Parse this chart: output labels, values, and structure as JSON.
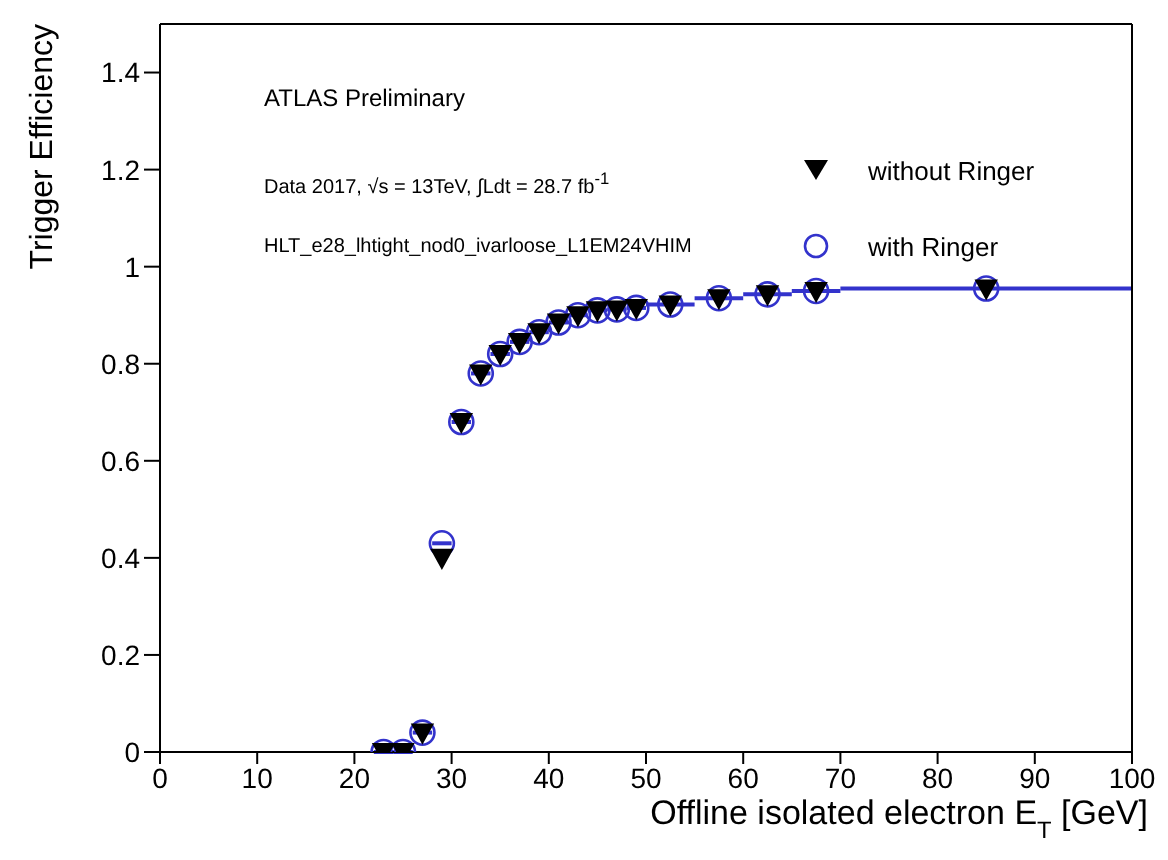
{
  "chart_data": {
    "type": "scatter",
    "xlabel": "Offline isolated electron E$_{T}$ [GeV]",
    "ylabel": "Trigger Efficiency",
    "annotations": [
      "ATLAS Preliminary",
      "Data 2017, √s = 13TeV, ∫Ldt = 28.7 fb$^{-1}$",
      "HLT_e28_lhtight_nod0_ivarloose_L1EM24VHIM"
    ],
    "x": [
      23,
      25,
      27,
      29,
      31,
      33,
      35,
      37,
      39,
      41,
      43,
      45,
      47,
      49,
      52.5,
      57.5,
      62.5,
      67.5,
      85
    ],
    "series": [
      {
        "name": "without Ringer",
        "color": "#000000",
        "marker": "triangle",
        "values": [
          0,
          0,
          0.04,
          0.4,
          0.68,
          0.78,
          0.82,
          0.845,
          0.865,
          0.885,
          0.9,
          0.91,
          0.912,
          0.915,
          0.922,
          0.935,
          0.943,
          0.95,
          0.955
        ]
      },
      {
        "name": "with Ringer",
        "color": "#3333cc",
        "marker": "circle",
        "values": [
          0,
          0,
          0.04,
          0.43,
          0.68,
          0.78,
          0.82,
          0.845,
          0.865,
          0.885,
          0.9,
          0.91,
          0.912,
          0.915,
          0.922,
          0.935,
          0.943,
          0.95,
          0.955
        ],
        "xerrors": [
          1,
          1,
          1,
          1,
          1,
          1,
          1,
          1,
          1,
          1,
          1,
          1,
          1,
          1,
          2.5,
          2.5,
          2.5,
          2.5,
          15
        ]
      }
    ],
    "xlim": [
      0,
      100
    ],
    "xticks": [
      0,
      10,
      20,
      30,
      40,
      50,
      60,
      70,
      80,
      90,
      100
    ],
    "ylim": [
      0,
      1.5
    ],
    "yticks": [
      0,
      0.2,
      0.4,
      0.6,
      0.8,
      1,
      1.2,
      1.4
    ],
    "grid": false,
    "legend": "top right"
  }
}
